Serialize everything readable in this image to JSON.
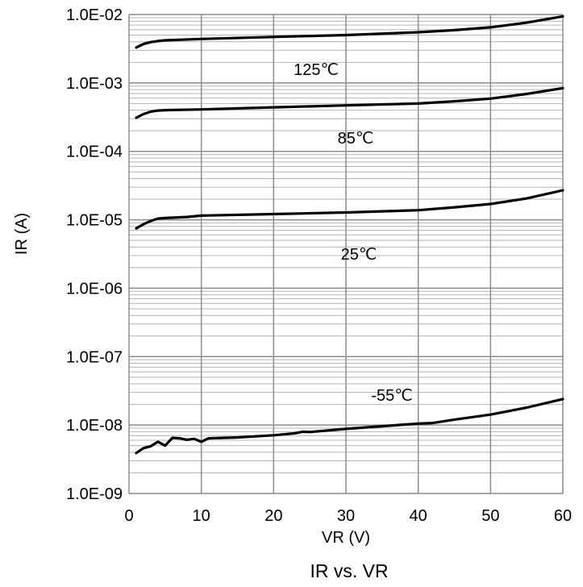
{
  "chart_data": {
    "type": "line",
    "title": "IR vs. VR",
    "xlabel": "VR (V)",
    "ylabel": "IR (A)",
    "xlim": [
      0,
      60
    ],
    "ylim": [
      1e-09,
      0.01
    ],
    "y_scale": "log",
    "grid": true,
    "x_ticks": [
      "0",
      "10",
      "20",
      "30",
      "40",
      "50",
      "60"
    ],
    "y_ticks": [
      "1.0E-09",
      "1.0E-08",
      "1.0E-07",
      "1.0E-06",
      "1.0E-05",
      "1.0E-04",
      "1.0E-03",
      "1.0E-02"
    ],
    "series": [
      {
        "name": "125℃",
        "x": [
          1,
          2,
          3,
          4,
          5,
          10,
          20,
          30,
          40,
          45,
          50,
          55,
          60
        ],
        "y": [
          0.0033,
          0.0037,
          0.00395,
          0.0041,
          0.0042,
          0.0044,
          0.0047,
          0.005,
          0.0055,
          0.0059,
          0.0065,
          0.0076,
          0.0094
        ]
      },
      {
        "name": "85℃",
        "x": [
          1,
          2,
          3,
          4,
          5,
          10,
          20,
          30,
          40,
          45,
          50,
          55,
          60
        ],
        "y": [
          0.00031,
          0.00035,
          0.00038,
          0.000395,
          0.0004,
          0.00041,
          0.00044,
          0.00047,
          0.0005,
          0.00054,
          0.00059,
          0.00069,
          0.00084
        ]
      },
      {
        "name": "25℃",
        "x": [
          1,
          2,
          3,
          4,
          5,
          8,
          10,
          20,
          30,
          40,
          45,
          50,
          55,
          60
        ],
        "y": [
          7.5e-06,
          8.6e-06,
          9.6e-06,
          1.04e-05,
          1.06e-05,
          1.1e-05,
          1.15e-05,
          1.21e-05,
          1.28e-05,
          1.38e-05,
          1.52e-05,
          1.7e-05,
          2.05e-05,
          2.7e-05
        ]
      },
      {
        "name": "-55℃",
        "x": [
          1,
          2,
          3,
          4,
          5,
          6,
          7,
          8,
          9,
          10,
          11,
          15,
          20,
          23,
          24,
          25,
          30,
          35,
          40,
          42,
          45,
          50,
          55,
          60
        ],
        "y": [
          3.9e-09,
          4.6e-09,
          4.9e-09,
          5.7e-09,
          5e-09,
          6.5e-09,
          6.4e-09,
          6.1e-09,
          6.3e-09,
          5.7e-09,
          6.4e-09,
          6.6e-09,
          7.1e-09,
          7.6e-09,
          8e-09,
          7.9e-09,
          8.8e-09,
          9.6e-09,
          1.05e-08,
          1.07e-08,
          1.2e-08,
          1.42e-08,
          1.8e-08,
          2.4e-08
        ]
      }
    ]
  }
}
